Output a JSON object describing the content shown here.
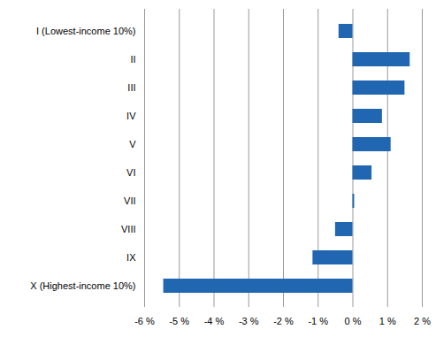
{
  "chart_data": {
    "type": "bar",
    "orientation": "horizontal",
    "categories": [
      "I (Lowest-income 10%)",
      "II",
      "III",
      "IV",
      "V",
      "VI",
      "VII",
      "VIII",
      "IX",
      "X (Highest-income 10%)"
    ],
    "values": [
      -0.4,
      1.65,
      1.5,
      0.85,
      1.1,
      0.55,
      0.05,
      -0.5,
      -1.15,
      -5.45
    ],
    "color": "#2066b0",
    "xlim": [
      -6,
      2
    ],
    "xticks": [
      {
        "value": -6,
        "label": "-6 %"
      },
      {
        "value": -5,
        "label": "-5 %"
      },
      {
        "value": -4,
        "label": "-4 %"
      },
      {
        "value": -3,
        "label": "-3 %"
      },
      {
        "value": -2,
        "label": "-2 %"
      },
      {
        "value": -1,
        "label": "-1 %"
      },
      {
        "value": 0,
        "label": "0 %"
      },
      {
        "value": 1,
        "label": "1 %"
      },
      {
        "value": 2,
        "label": "2 %"
      }
    ],
    "grid": true
  }
}
